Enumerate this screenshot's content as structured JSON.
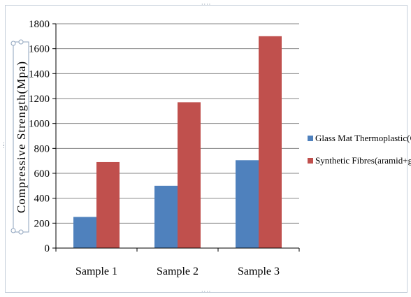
{
  "chart_data": {
    "type": "bar",
    "categories": [
      "Sample 1",
      "Sample 2",
      "Sample 3"
    ],
    "series": [
      {
        "name": "Glass Mat Thermoplastic(GMT)",
        "values": [
          250,
          500,
          705
        ],
        "color": "#4f81bd"
      },
      {
        "name": "Synthetic Fibres(aramid+glass)",
        "values": [
          690,
          1170,
          1700
        ],
        "color": "#c0504d"
      }
    ],
    "title": "",
    "xlabel": "",
    "ylabel": "Compressive Strength(Mpa)",
    "ylim": [
      0,
      1800
    ],
    "yticks": [
      0,
      200,
      400,
      600,
      800,
      1000,
      1200,
      1400,
      1600,
      1800
    ],
    "grid": true,
    "legend_position": "right"
  },
  "colors": {
    "gridline": "#868686",
    "frame_border": "#c6cfdb"
  }
}
